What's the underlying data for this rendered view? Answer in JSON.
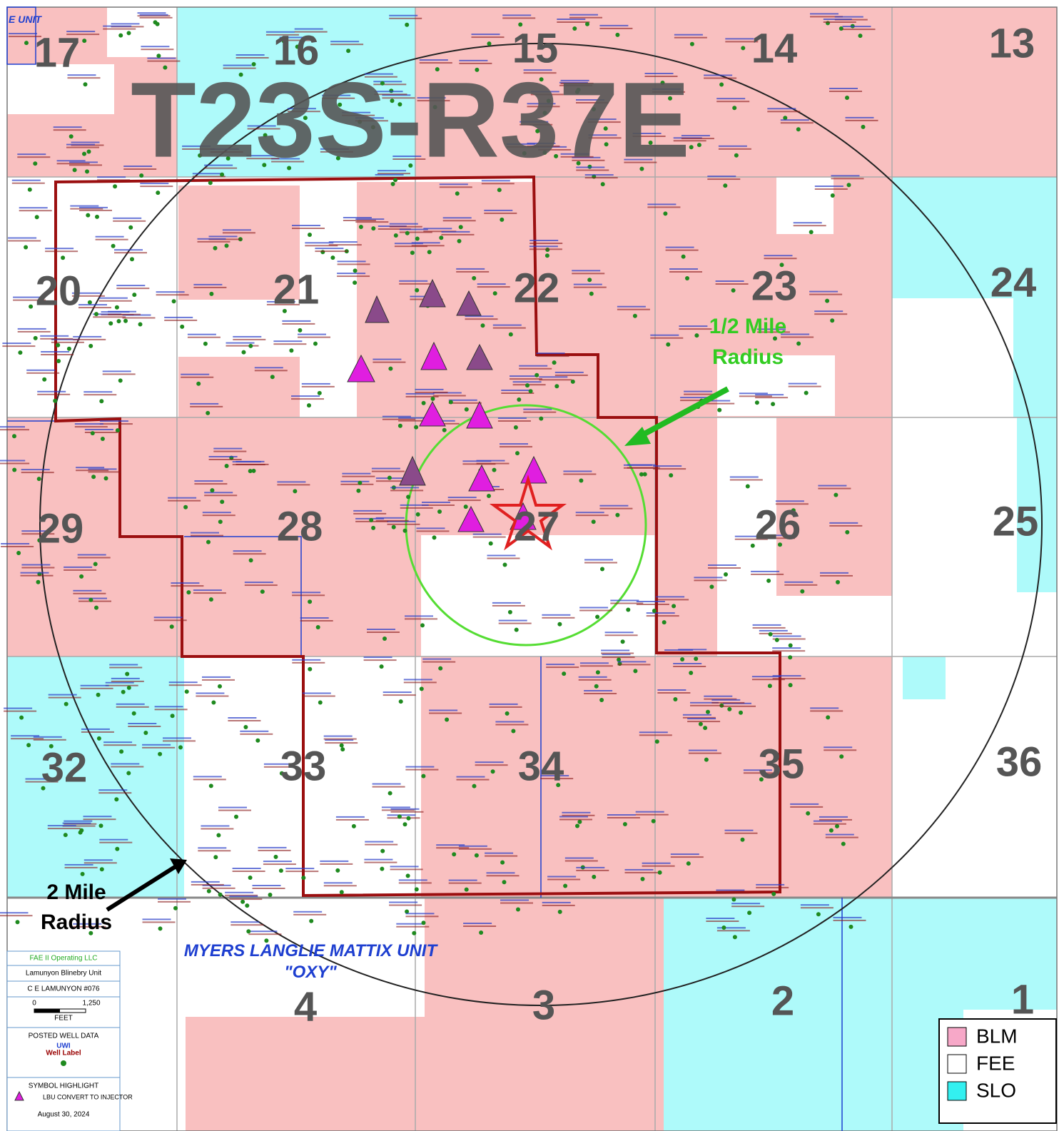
{
  "title": "T23S-R37E",
  "corner_label": "E UNIT",
  "sections": [
    "17",
    "16",
    "15",
    "14",
    "13",
    "20",
    "21",
    "22",
    "23",
    "24",
    "29",
    "28",
    "27",
    "26",
    "25",
    "32",
    "33",
    "34",
    "35",
    "36",
    "4",
    "3",
    "2",
    "1"
  ],
  "annotations": {
    "half_mile": [
      "1/2 Mile",
      "Radius"
    ],
    "two_mile": [
      "2 Mile",
      "Radius"
    ],
    "unit_name": "MYERS LANGLIE MATTIX UNIT",
    "operator": "\"OXY\""
  },
  "legend": [
    "BLM",
    "FEE",
    "SLO"
  ],
  "info_box": {
    "company": "FAE II Operating LLC",
    "unit": "Lamunyon Blinebry Unit",
    "well": "C E LAMUNYON #076",
    "scale_start": "0",
    "scale_end": "1,250",
    "scale_unit": "FEET",
    "posted": "POSTED WELL DATA",
    "uwi": "UWI",
    "well_label": "Well Label",
    "symbol": "SYMBOL HIGHLIGHT",
    "symbol_text": "LBU CONVERT TO INJECTOR",
    "date": "August 30, 2024"
  }
}
